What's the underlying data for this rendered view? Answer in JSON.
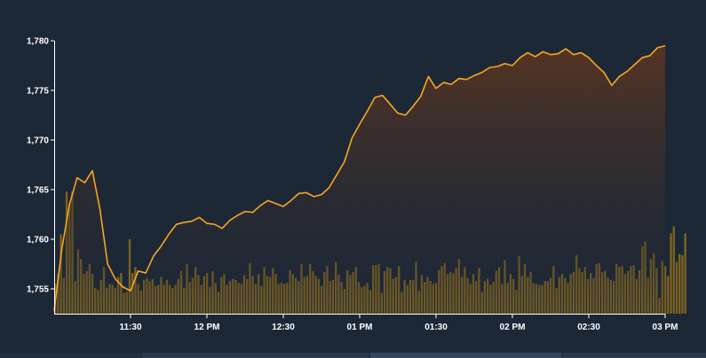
{
  "chart_data": {
    "type": "area",
    "title": "",
    "xlabel": "",
    "ylabel": "",
    "ylim": [
      1752.5,
      1780
    ],
    "yticks": [
      1755,
      1760,
      1765,
      1770,
      1775,
      1780
    ],
    "ytick_labels": [
      "1,755",
      "1,760",
      "1,765",
      "1,770",
      "1,775",
      "1,780"
    ],
    "xlim": [
      "11:00",
      "15:00"
    ],
    "xticks": [
      "11:30",
      "12:00",
      "12:30",
      "13:00",
      "13:30",
      "14:00",
      "14:30",
      "15:00"
    ],
    "xtick_labels": [
      "11:30",
      "12 PM",
      "12:30",
      "01 PM",
      "01:30",
      "02 PM",
      "02:30",
      "03 PM"
    ],
    "grid": false,
    "colors": {
      "line": "#f5a623",
      "area_top": "#5a3522",
      "bars": "#8a6a20",
      "background": "#1d2836",
      "axis": "#ffffff"
    },
    "series": [
      {
        "kind": "line",
        "x": [
          "11:00",
          "11:03",
          "11:06",
          "11:09",
          "11:12",
          "11:15",
          "11:18",
          "11:21",
          "11:24",
          "11:27",
          "11:30",
          "11:33",
          "11:36",
          "11:39",
          "11:42",
          "11:45",
          "11:48",
          "11:51",
          "11:54",
          "11:57",
          "12:00",
          "12:03",
          "12:06",
          "12:09",
          "12:12",
          "12:15",
          "12:18",
          "12:21",
          "12:24",
          "12:27",
          "12:30",
          "12:33",
          "12:36",
          "12:39",
          "12:42",
          "12:45",
          "12:48",
          "12:51",
          "12:54",
          "12:57",
          "13:00",
          "13:03",
          "13:06",
          "13:09",
          "13:12",
          "13:15",
          "13:18",
          "13:21",
          "13:24",
          "13:27",
          "13:30",
          "13:33",
          "13:36",
          "13:39",
          "13:42",
          "13:45",
          "13:48",
          "13:51",
          "13:54",
          "13:57",
          "14:00",
          "14:03",
          "14:06",
          "14:09",
          "14:12",
          "14:15",
          "14:18",
          "14:21",
          "14:24",
          "14:27",
          "14:30",
          "14:33",
          "14:36",
          "14:39",
          "14:42",
          "14:45",
          "14:48",
          "14:51",
          "14:54",
          "14:57",
          "15:00"
        ],
        "values": [
          1752.8,
          1759,
          1763.5,
          1766.2,
          1765.7,
          1766.9,
          1763,
          1757.5,
          1756,
          1755.2,
          1754.8,
          1756.8,
          1756.6,
          1758.3,
          1759.3,
          1760.5,
          1761.5,
          1761.7,
          1761.8,
          1762.2,
          1761.6,
          1761.5,
          1761.1,
          1761.9,
          1762.4,
          1762.8,
          1762.7,
          1763.4,
          1763.9,
          1763.6,
          1763.3,
          1763.9,
          1764.6,
          1764.7,
          1764.3,
          1764.5,
          1765.2,
          1766.5,
          1767.8,
          1770.2,
          1771.6,
          1772.9,
          1774.3,
          1774.5,
          1773.6,
          1772.7,
          1772.5,
          1773.4,
          1774.4,
          1776.4,
          1775.2,
          1775.8,
          1775.6,
          1776.2,
          1776.1,
          1776.5,
          1776.8,
          1777.3,
          1777.4,
          1777.7,
          1777.5,
          1778.3,
          1778.8,
          1778.4,
          1778.9,
          1778.6,
          1778.7,
          1779.2,
          1778.6,
          1778.8,
          1778.3,
          1777.5,
          1776.8,
          1775.5,
          1776.4,
          1776.9,
          1777.6,
          1778.3,
          1778.5,
          1779.3,
          1779.5
        ]
      },
      {
        "kind": "bar",
        "name": "",
        "y_bottom": 1752.5,
        "x_start": "11:00",
        "minutes_per_bar": 1.125,
        "values": [
          1755.5,
          1756.5,
          1760.5,
          1756.1,
          1764.8,
          1763.5,
          1764.8,
          1755.8,
          1759,
          1758,
          1756.5,
          1756.8,
          1757.5,
          1756.5,
          1755.1,
          1754.9,
          1755.9,
          1757.2,
          1755.1,
          1755.5,
          1755.4,
          1755.1,
          1756.2,
          1756.6,
          1754.6,
          1754.7,
          1760,
          1756.6,
          1757.2,
          1755.5,
          1754.8,
          1755.9,
          1756.1,
          1755.8,
          1756,
          1755.3,
          1755.4,
          1756.2,
          1755.4,
          1755.9,
          1755.4,
          1755.1,
          1755.4,
          1756,
          1756.8,
          1755.1,
          1757.5,
          1755.7,
          1756.1,
          1757.2,
          1756.4,
          1755.4,
          1756.3,
          1756.6,
          1755.2,
          1756.8,
          1755.6,
          1754.7,
          1756.2,
          1756.5,
          1755.4,
          1755.8,
          1756,
          1755.9,
          1755.6,
          1755.5,
          1756.4,
          1756,
          1757.6,
          1756.3,
          1755.5,
          1756.5,
          1755.3,
          1757.2,
          1756.3,
          1756.2,
          1757.1,
          1756.5,
          1755.5,
          1755.6,
          1755.5,
          1755.6,
          1756.9,
          1756.5,
          1756.1,
          1755.8,
          1757.5,
          1756.2,
          1756.3,
          1757.5,
          1756.8,
          1756.3,
          1756,
          1755.3,
          1756.7,
          1757.3,
          1755.8,
          1755.9,
          1757.7,
          1756.4,
          1755.7,
          1755,
          1756.9,
          1756.4,
          1756.7,
          1757.2,
          1755.7,
          1755.2,
          1755.3,
          1755.6,
          1754.9,
          1757.4,
          1757.4,
          1757.5,
          1754.6,
          1756.8,
          1757.2,
          1757.1,
          1756,
          1756.2,
          1757.3,
          1754.7,
          1755.9,
          1755.4,
          1755.9,
          1755.9,
          1757.7,
          1754.8,
          1756.4,
          1755.7,
          1756.2,
          1755.8,
          1755.5,
          1755.6,
          1756.9,
          1757.3,
          1757.6,
          1756.5,
          1756.7,
          1756.6,
          1757.1,
          1758,
          1756.2,
          1757.2,
          1756.1,
          1755.5,
          1756.5,
          1755.8,
          1757.1,
          1754.7,
          1755.8,
          1756,
          1755.4,
          1755.7,
          1756.8,
          1757.2,
          1755.5,
          1757.9,
          1755.6,
          1756.5,
          1756,
          1754.9,
          1758.3,
          1756.3,
          1757.5,
          1756.2,
          1756.7,
          1755.6,
          1755.5,
          1755.4,
          1755.4,
          1755.8,
          1755.8,
          1756.1,
          1757.3,
          1755.1,
          1756.2,
          1756.5,
          1756.1,
          1755.6,
          1756.5,
          1756.7,
          1758.4,
          1757.1,
          1756.7,
          1757.2,
          1756,
          1756.6,
          1756.1,
          1757.5,
          1757.6,
          1756.7,
          1756.8,
          1756.1,
          1755.9,
          1755.8,
          1757.5,
          1757.2,
          1757.3,
          1756.5,
          1756.8,
          1757.3,
          1757.4,
          1756,
          1756.9,
          1759.3,
          1759.8,
          1756.1,
          1758,
          1758.6,
          1757.1,
          1754.1,
          1757.8,
          1757.3,
          1756.3,
          1760.6,
          1761.3,
          1757.7,
          1758.5,
          1758.4,
          1760.6
        ]
      }
    ]
  }
}
